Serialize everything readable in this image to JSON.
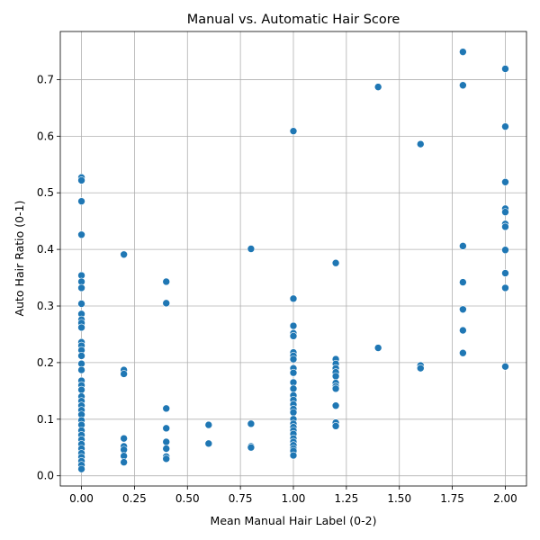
{
  "chart_data": {
    "type": "scatter",
    "title": "Manual vs. Automatic Hair Score",
    "xlabel": "Mean Manual Hair Label (0-2)",
    "ylabel": "Auto Hair Ratio (0-1)",
    "xlim": [
      -0.1,
      2.1
    ],
    "ylim": [
      -0.018,
      0.785
    ],
    "xticks": [
      0.0,
      0.25,
      0.5,
      0.75,
      1.0,
      1.25,
      1.5,
      1.75,
      2.0
    ],
    "xtick_labels": [
      "0.00",
      "0.25",
      "0.50",
      "0.75",
      "1.00",
      "1.25",
      "1.50",
      "1.75",
      "2.00"
    ],
    "yticks": [
      0.0,
      0.1,
      0.2,
      0.3,
      0.4,
      0.5,
      0.6,
      0.7
    ],
    "ytick_labels": [
      "0.0",
      "0.1",
      "0.2",
      "0.3",
      "0.4",
      "0.5",
      "0.6",
      "0.7"
    ],
    "grid": true,
    "color": "#1f77b4",
    "points": [
      [
        0.0,
        0.527
      ],
      [
        0.0,
        0.522
      ],
      [
        0.0,
        0.485
      ],
      [
        0.0,
        0.426
      ],
      [
        0.0,
        0.354
      ],
      [
        0.0,
        0.343
      ],
      [
        0.0,
        0.332
      ],
      [
        0.0,
        0.304
      ],
      [
        0.0,
        0.286
      ],
      [
        0.0,
        0.276
      ],
      [
        0.0,
        0.27
      ],
      [
        0.0,
        0.262
      ],
      [
        0.0,
        0.236
      ],
      [
        0.0,
        0.23
      ],
      [
        0.0,
        0.222
      ],
      [
        0.0,
        0.212
      ],
      [
        0.0,
        0.198
      ],
      [
        0.0,
        0.187
      ],
      [
        0.0,
        0.168
      ],
      [
        0.0,
        0.16
      ],
      [
        0.0,
        0.152
      ],
      [
        0.0,
        0.14
      ],
      [
        0.0,
        0.132
      ],
      [
        0.0,
        0.124
      ],
      [
        0.0,
        0.116
      ],
      [
        0.0,
        0.108
      ],
      [
        0.0,
        0.098
      ],
      [
        0.0,
        0.09
      ],
      [
        0.0,
        0.08
      ],
      [
        0.0,
        0.072
      ],
      [
        0.0,
        0.064
      ],
      [
        0.0,
        0.056
      ],
      [
        0.0,
        0.048
      ],
      [
        0.0,
        0.04
      ],
      [
        0.0,
        0.033
      ],
      [
        0.0,
        0.026
      ],
      [
        0.0,
        0.019
      ],
      [
        0.0,
        0.012
      ],
      [
        0.2,
        0.391
      ],
      [
        0.2,
        0.187
      ],
      [
        0.2,
        0.18
      ],
      [
        0.2,
        0.066
      ],
      [
        0.2,
        0.052
      ],
      [
        0.2,
        0.046
      ],
      [
        0.2,
        0.035
      ],
      [
        0.2,
        0.024
      ],
      [
        0.4,
        0.343
      ],
      [
        0.4,
        0.305
      ],
      [
        0.4,
        0.119
      ],
      [
        0.4,
        0.084
      ],
      [
        0.4,
        0.06
      ],
      [
        0.4,
        0.048
      ],
      [
        0.4,
        0.034
      ],
      [
        0.4,
        0.03
      ],
      [
        0.6,
        0.09
      ],
      [
        0.6,
        0.057
      ],
      [
        0.8,
        0.401
      ],
      [
        0.8,
        0.092
      ],
      [
        0.8,
        0.052
      ],
      [
        0.8,
        0.05
      ],
      [
        1.0,
        0.609
      ],
      [
        1.0,
        0.313
      ],
      [
        1.0,
        0.265
      ],
      [
        1.0,
        0.252
      ],
      [
        1.0,
        0.247
      ],
      [
        1.0,
        0.218
      ],
      [
        1.0,
        0.212
      ],
      [
        1.0,
        0.206
      ],
      [
        1.0,
        0.19
      ],
      [
        1.0,
        0.182
      ],
      [
        1.0,
        0.165
      ],
      [
        1.0,
        0.154
      ],
      [
        1.0,
        0.142
      ],
      [
        1.0,
        0.134
      ],
      [
        1.0,
        0.126
      ],
      [
        1.0,
        0.118
      ],
      [
        1.0,
        0.112
      ],
      [
        1.0,
        0.1
      ],
      [
        1.0,
        0.092
      ],
      [
        1.0,
        0.086
      ],
      [
        1.0,
        0.08
      ],
      [
        1.0,
        0.074
      ],
      [
        1.0,
        0.066
      ],
      [
        1.0,
        0.06
      ],
      [
        1.0,
        0.054
      ],
      [
        1.0,
        0.048
      ],
      [
        1.0,
        0.044
      ],
      [
        1.0,
        0.036
      ],
      [
        1.2,
        0.376
      ],
      [
        1.2,
        0.206
      ],
      [
        1.2,
        0.198
      ],
      [
        1.2,
        0.19
      ],
      [
        1.2,
        0.183
      ],
      [
        1.2,
        0.176
      ],
      [
        1.2,
        0.164
      ],
      [
        1.2,
        0.158
      ],
      [
        1.2,
        0.154
      ],
      [
        1.2,
        0.124
      ],
      [
        1.2,
        0.094
      ],
      [
        1.2,
        0.088
      ],
      [
        1.4,
        0.687
      ],
      [
        1.4,
        0.226
      ],
      [
        1.6,
        0.586
      ],
      [
        1.6,
        0.195
      ],
      [
        1.6,
        0.19
      ],
      [
        1.8,
        0.749
      ],
      [
        1.8,
        0.69
      ],
      [
        1.8,
        0.406
      ],
      [
        1.8,
        0.342
      ],
      [
        1.8,
        0.294
      ],
      [
        1.8,
        0.257
      ],
      [
        1.8,
        0.217
      ],
      [
        2.0,
        0.719
      ],
      [
        2.0,
        0.617
      ],
      [
        2.0,
        0.519
      ],
      [
        2.0,
        0.472
      ],
      [
        2.0,
        0.466
      ],
      [
        2.0,
        0.445
      ],
      [
        2.0,
        0.44
      ],
      [
        2.0,
        0.399
      ],
      [
        2.0,
        0.358
      ],
      [
        2.0,
        0.332
      ],
      [
        2.0,
        0.193
      ]
    ]
  }
}
